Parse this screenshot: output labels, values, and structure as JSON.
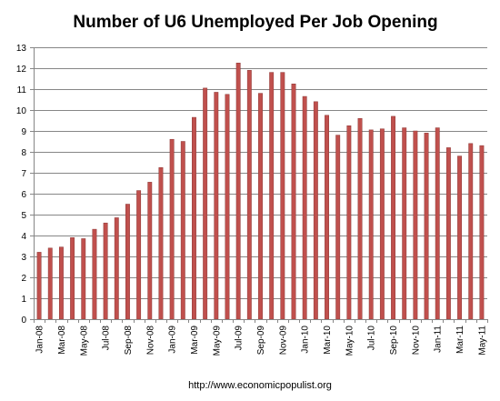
{
  "chart_data": {
    "type": "bar",
    "title": "Number of U6 Unemployed Per Job Opening",
    "footer": "http://www.economicpopulist.org",
    "categories": [
      "Jan-08",
      "Feb-08",
      "Mar-08",
      "Apr-08",
      "May-08",
      "Jun-08",
      "Jul-08",
      "Aug-08",
      "Sep-08",
      "Oct-08",
      "Nov-08",
      "Dec-08",
      "Jan-09",
      "Feb-09",
      "Mar-09",
      "Apr-09",
      "May-09",
      "Jun-09",
      "Jul-09",
      "Aug-09",
      "Sep-09",
      "Oct-09",
      "Nov-09",
      "Dec-09",
      "Jan-10",
      "Feb-10",
      "Mar-10",
      "Apr-10",
      "May-10",
      "Jun-10",
      "Jul-10",
      "Aug-10",
      "Sep-10",
      "Oct-10",
      "Nov-10",
      "Dec-10",
      "Jan-11",
      "Feb-11",
      "Mar-11",
      "Apr-11",
      "May-11"
    ],
    "x_tick_labels": [
      "Jan-08",
      "Mar-08",
      "May-08",
      "Jul-08",
      "Sep-08",
      "Nov-08",
      "Jan-09",
      "Mar-09",
      "May-09",
      "Jul-09",
      "Sep-09",
      "Nov-09",
      "Jan-10",
      "Mar-10",
      "May-10",
      "Jul-10",
      "Sep-10",
      "Nov-10",
      "Jan-11",
      "Mar-11",
      "May-11"
    ],
    "values": [
      3.2,
      3.4,
      3.45,
      3.9,
      3.85,
      4.3,
      4.6,
      4.85,
      5.5,
      6.15,
      6.55,
      7.25,
      8.6,
      8.5,
      9.65,
      11.05,
      10.85,
      10.75,
      12.25,
      11.9,
      10.8,
      11.8,
      11.8,
      11.25,
      10.65,
      10.4,
      9.75,
      8.8,
      9.25,
      9.6,
      9.05,
      9.1,
      9.7,
      9.15,
      9.0,
      8.9,
      9.15,
      8.2,
      7.8,
      8.4,
      8.3
    ],
    "y_ticks": [
      "0",
      "1",
      "2",
      "3",
      "4",
      "5",
      "6",
      "7",
      "8",
      "9",
      "10",
      "11",
      "12",
      "13"
    ],
    "ylim": [
      0,
      13
    ],
    "grid": true,
    "legend": "none",
    "xlabel": "",
    "ylabel": "",
    "colors": {
      "bar_fill": "#c0504d",
      "bar_edge": "#8c3836",
      "grid": "#868686",
      "axis": "#868686"
    }
  }
}
